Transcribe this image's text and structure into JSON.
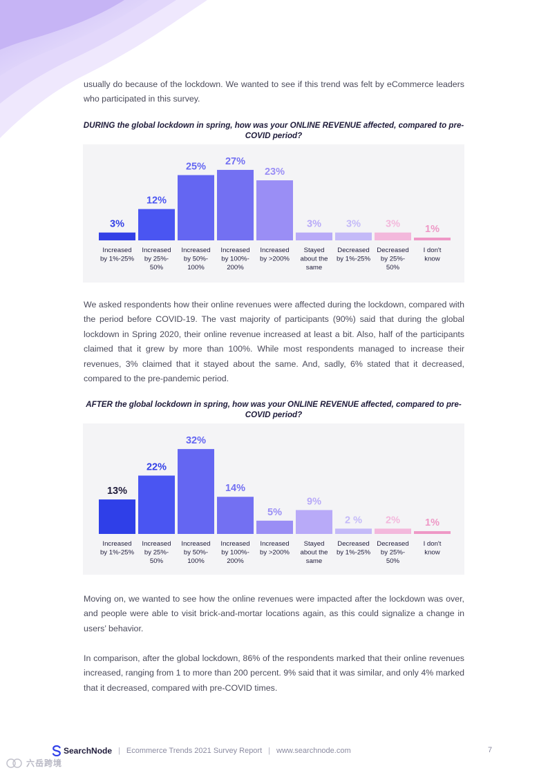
{
  "paragraphs": {
    "p1": "usually do because of the lockdown. We wanted to see if this trend was felt by eCommerce leaders who participated in this survey.",
    "p2": "We asked respondents how their online revenues were affected during the lockdown, compared with the period before COVID-19. The vast majority of participants (90%) said that during the global lockdown in Spring 2020, their online revenue increased at least a bit. Also, half of the participants claimed that it grew by more than 100%. While most respondents managed to increase their revenues, 3% claimed that it stayed about the same. And, sadly, 6% stated that it decreased, compared to the pre-pandemic period.",
    "p3": "Moving on, we wanted to see how the online revenues were impacted after the lockdown was over, and people were able to visit brick-and-mortar locations again, as this could signalize a change in users’ behavior.",
    "p4": "In comparison, after the global lockdown, 86% of the respondents marked that their online revenues increased, ranging from 1 to more than 200 percent. 9% said that it was similar, and only 4% marked that it decreased, compared with pre-COVID times."
  },
  "chart_data": [
    {
      "type": "bar",
      "title": "DURING the global lockdown in spring, how was your ONLINE REVENUE affected, compared to pre-COVID period?",
      "categories": [
        [
          "Increased",
          "by 1%-25%"
        ],
        [
          "Increased",
          "by 25%-",
          "50%"
        ],
        [
          "Increased",
          "by 50%-",
          "100%"
        ],
        [
          "Increased",
          "by 100%-",
          "200%"
        ],
        [
          "Increased",
          "by >200%"
        ],
        [
          "Stayed",
          "about the",
          "same"
        ],
        [
          "Decreased",
          "by 1%-25%"
        ],
        [
          "Decreased",
          "by 25%-",
          "50%"
        ],
        [
          "I don't",
          "know"
        ]
      ],
      "values": [
        3,
        12,
        25,
        27,
        23,
        3,
        3,
        3,
        1
      ],
      "value_labels": [
        "3%",
        "12%",
        "25%",
        "27%",
        "23%",
        "3%",
        "3%",
        "3%",
        "1%"
      ],
      "colors": [
        "#3340e6",
        "#4a55f2",
        "#6466f2",
        "#7370f2",
        "#9a8ef5",
        "#b8aaf8",
        "#c4baf8",
        "#f3b8dc",
        "#ee98c6"
      ],
      "label_colors": [
        "#3340e6",
        "#4a55f2",
        "#6466f2",
        "#7370f2",
        "#9a8ef5",
        "#b8aaf8",
        "#c4baf8",
        "#f3b8dc",
        "#ee98c6"
      ]
    },
    {
      "type": "bar",
      "title": "AFTER the global lockdown in spring, how was your ONLINE REVENUE affected, compared to pre-COVID period?",
      "categories": [
        [
          "Increased",
          "by 1%-25%"
        ],
        [
          "Increased",
          "by 25%-",
          "50%"
        ],
        [
          "Increased",
          "by 50%-",
          "100%"
        ],
        [
          "Increased",
          "by 100%-",
          "200%"
        ],
        [
          "Increased",
          "by >200%"
        ],
        [
          "Stayed",
          "about the",
          "same"
        ],
        [
          "Decreased",
          "by 1%-25%"
        ],
        [
          "Decreased",
          "by 25%-",
          "50%"
        ],
        [
          "I don't",
          "know"
        ]
      ],
      "values": [
        13,
        22,
        32,
        14,
        5,
        9,
        2,
        2,
        1
      ],
      "value_labels": [
        "13%",
        "22%",
        "32%",
        "14%",
        "5%",
        "9%",
        "2 %",
        "2%",
        "1%"
      ],
      "colors": [
        "#2f3fe8",
        "#4a55f2",
        "#6466f2",
        "#7370f2",
        "#9a8ef5",
        "#b8aaf8",
        "#c4baf8",
        "#f3b8dc",
        "#ee98c6"
      ],
      "label_colors": [
        "#1e1b3a",
        "#3340e6",
        "#6466f2",
        "#7370f2",
        "#9a8ef5",
        "#b8aaf8",
        "#c4baf8",
        "#f3b8dc",
        "#ee98c6"
      ]
    }
  ],
  "footer": {
    "brand": "SearchNode",
    "report": "Ecommerce Trends 2021 Survey Report",
    "url": "www.searchnode.com",
    "page_number": "7",
    "logo_icon": "searchnode-s-logo-icon"
  },
  "watermark": {
    "text": "六岳跨境"
  }
}
